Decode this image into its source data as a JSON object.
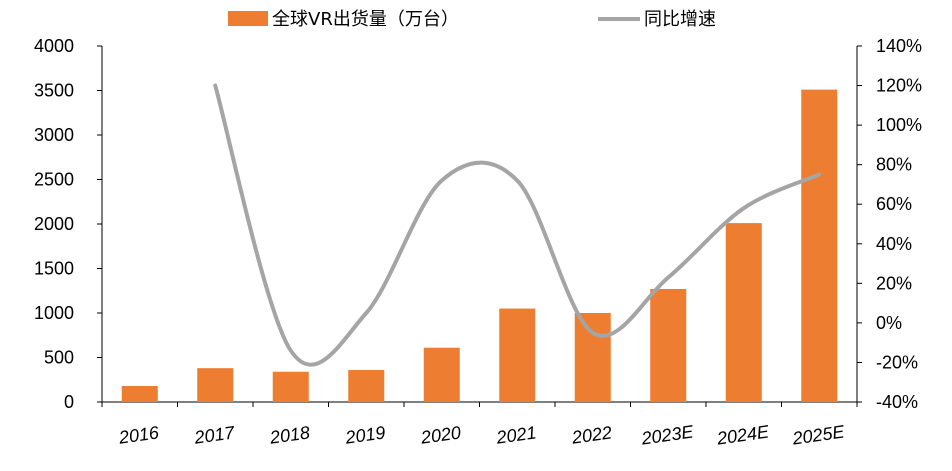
{
  "chart_data": {
    "type": "bar",
    "title": "",
    "categories": [
      "2016",
      "2017",
      "2018",
      "2019",
      "2020",
      "2021",
      "2022",
      "2023E",
      "2024E",
      "2025E"
    ],
    "series": [
      {
        "name": "全球VR出货量（万台）",
        "kind": "bar",
        "axis": "left",
        "color": "#ED7D31",
        "values": [
          180,
          380,
          340,
          360,
          610,
          1050,
          1000,
          1270,
          2010,
          3510
        ]
      },
      {
        "name": "同比增速",
        "kind": "line",
        "axis": "right",
        "color": "#A5A5A5",
        "values": [
          null,
          120,
          -14,
          5,
          72,
          72,
          -5,
          23,
          58,
          75
        ]
      }
    ],
    "y_left": {
      "min": 0,
      "max": 4000,
      "step": 500,
      "labels": [
        "0",
        "500",
        "1000",
        "1500",
        "2000",
        "2500",
        "3000",
        "3500",
        "4000"
      ]
    },
    "y_right": {
      "min": -40,
      "max": 140,
      "step": 20,
      "labels": [
        "-40%",
        "-20%",
        "0%",
        "20%",
        "40%",
        "60%",
        "80%",
        "100%",
        "120%",
        "140%"
      ]
    },
    "grid": false,
    "legend": "top"
  }
}
